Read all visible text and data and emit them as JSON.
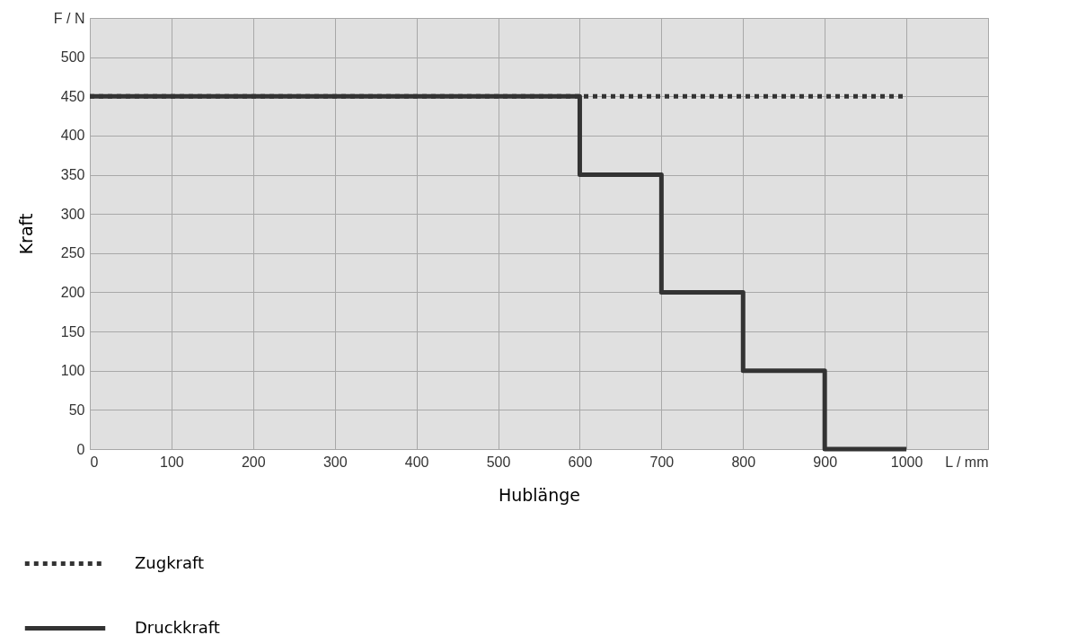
{
  "chart_data": {
    "type": "step",
    "xlabel": "Hublänge",
    "ylabel": "Kraft",
    "xlim": [
      0,
      1100
    ],
    "ylim": [
      0,
      550
    ],
    "xticks": [
      0,
      100,
      200,
      300,
      400,
      500,
      600,
      700,
      800,
      900,
      1000,
      {
        "value": 1100,
        "label": "L / mm"
      }
    ],
    "yticks": [
      0,
      50,
      100,
      150,
      200,
      250,
      300,
      350,
      400,
      450,
      500,
      {
        "value": 550,
        "label": "F / N"
      }
    ],
    "grid": true,
    "legend": "bottom left",
    "series": [
      {
        "name": "Zugkraft",
        "type": "line",
        "line_style": "dotted",
        "color": "#333333",
        "x": [
          0,
          1000
        ],
        "values": [
          450,
          450
        ]
      },
      {
        "name": "Druckkraft",
        "line_style": "solid",
        "color": "#333333",
        "x": [
          0,
          600,
          700,
          800,
          900,
          1000
        ],
        "values": [
          450,
          350,
          200,
          100,
          0,
          0
        ]
      }
    ]
  }
}
